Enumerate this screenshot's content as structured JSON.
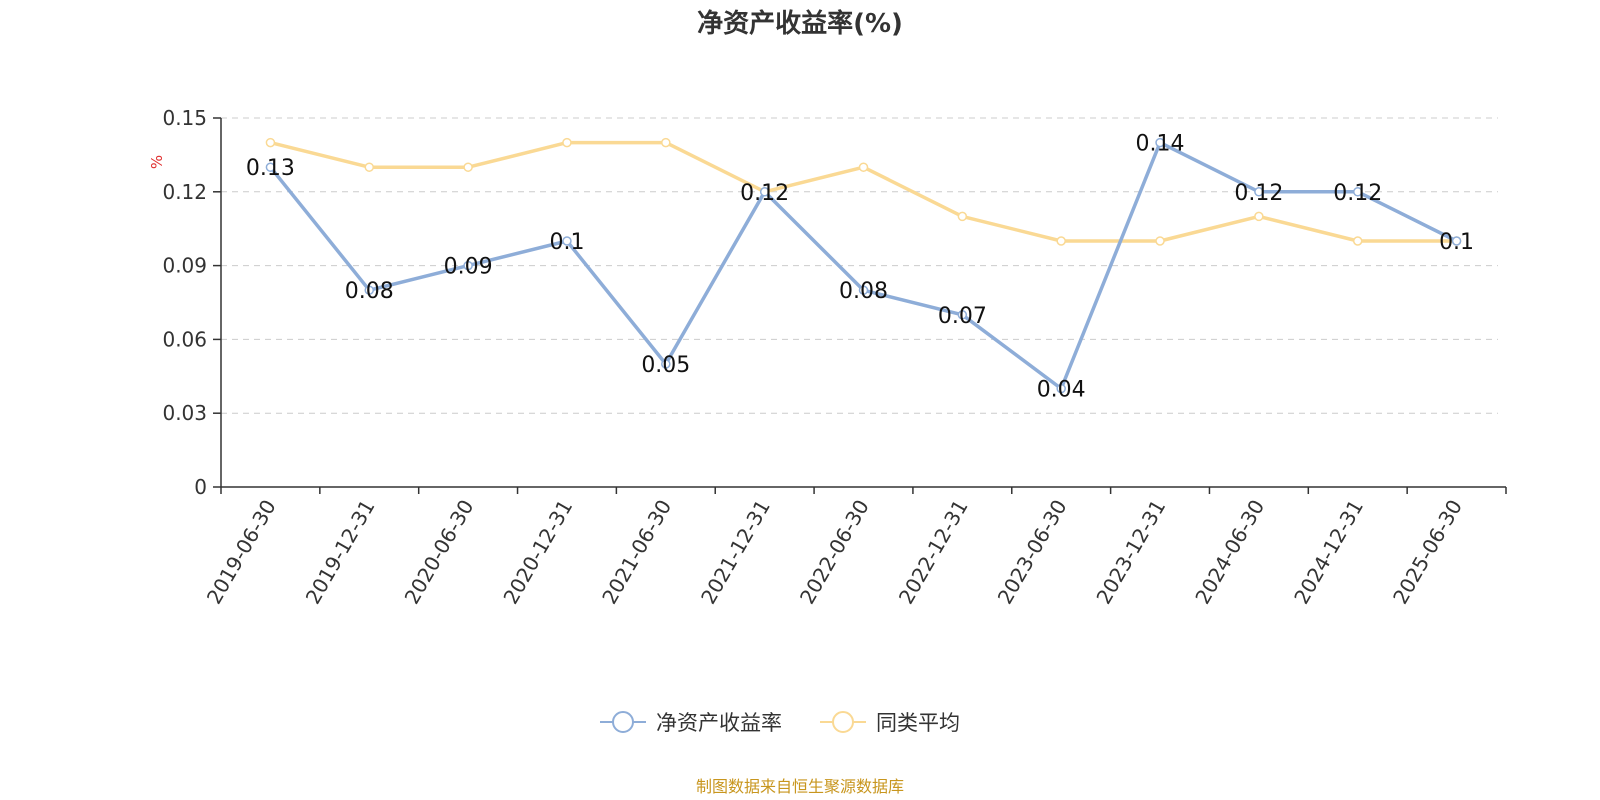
{
  "chart_data": {
    "type": "line",
    "title": "净资产收益率(%)",
    "ylabel": "%",
    "ylim": [
      0,
      0.15
    ],
    "yticks": [
      "0",
      "0.03",
      "0.06",
      "0.09",
      "0.12",
      "0.15"
    ],
    "grid": true,
    "categories": [
      "2019-06-30",
      "2019-12-31",
      "2020-06-30",
      "2020-12-31",
      "2021-06-30",
      "2021-12-31",
      "2022-06-30",
      "2022-12-31",
      "2023-06-30",
      "2023-12-31",
      "2024-06-30",
      "2024-12-31",
      "2025-06-30"
    ],
    "series": [
      {
        "name": "净资产收益率",
        "color": "#8eadd8",
        "values": [
          0.13,
          0.08,
          0.09,
          0.1,
          0.05,
          0.12,
          0.08,
          0.07,
          0.04,
          0.14,
          0.12,
          0.12,
          0.1
        ],
        "labels": [
          "0.13",
          "0.08",
          "0.09",
          "0.1",
          "0.05",
          "0.12",
          "0.08",
          "0.07",
          "0.04",
          "0.14",
          "0.12",
          "0.12",
          "0.1"
        ]
      },
      {
        "name": "同类平均",
        "color": "#fad994",
        "values": [
          0.14,
          0.13,
          0.13,
          0.14,
          0.14,
          0.12,
          0.13,
          0.11,
          0.1,
          0.1,
          0.11,
          0.1,
          0.1
        ]
      }
    ],
    "legend_position": "bottom-center"
  },
  "source_note": "制图数据来自恒生聚源数据库",
  "colors": {
    "unit_label": "#e03030",
    "source_note": "#c8961e",
    "axis": "#333333",
    "grid": "#cccccc"
  }
}
